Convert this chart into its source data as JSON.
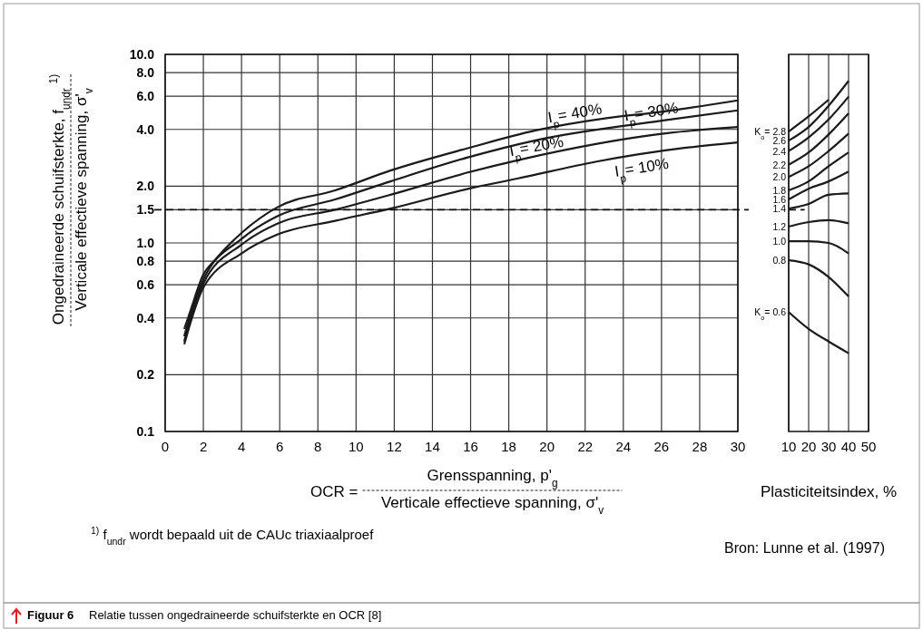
{
  "chart_data": [
    {
      "type": "line",
      "xlabel": "OCR =\nGrensspanning, p'$_{g}$\nVerticale effectieve spanning, σ'$_{v}$",
      "ylabel": "Ongedraineerde schuifsterkte, f$_{undr}$ $^{1)}$\nVerticale effectieve spanning, σ'$_{v}$",
      "xlim": [
        0,
        30
      ],
      "xticks": [
        0,
        2,
        4,
        6,
        8,
        10,
        12,
        14,
        16,
        18,
        20,
        22,
        24,
        26,
        28,
        30
      ],
      "ylim": [
        0.1,
        10
      ],
      "yticks": [
        0.1,
        0.2,
        0.4,
        0.6,
        0.8,
        {
          "value": 1,
          "label": "1.0"
        },
        1.5,
        {
          "value": 2,
          "label": "2.0"
        },
        {
          "value": 4,
          "label": "4.0"
        },
        {
          "value": 6,
          "label": "6.0"
        },
        {
          "value": 8,
          "label": "8.0"
        },
        {
          "value": 10,
          "label": "10.0"
        }
      ],
      "log": "y",
      "grid": true,
      "ref_lines": [
        {
          "axis": "y",
          "value": 1.5,
          "line_style": "dashed"
        }
      ],
      "series": [
        {
          "name": "I$_{p}$= 10%",
          "color": "#1a1a1a",
          "x": [
            1,
            1.3,
            2,
            4,
            5.9,
            8.9,
            11.8,
            15.9,
            18.5,
            22.6,
            27.2,
            30
          ],
          "values": [
            0.29,
            0.37,
            0.58,
            0.88,
            1.11,
            1.31,
            1.52,
            1.94,
            2.2,
            2.7,
            3.19,
            3.41
          ]
        },
        {
          "name": "I$_{p}$= 20%",
          "color": "#1a1a1a",
          "x": [
            1,
            1.3,
            2,
            4,
            5.9,
            8.9,
            11.8,
            15.9,
            18.5,
            26.4,
            30
          ],
          "values": [
            0.3,
            0.39,
            0.61,
            0.98,
            1.27,
            1.5,
            1.8,
            2.37,
            2.75,
            3.83,
            4.12
          ]
        },
        {
          "name": "I$_{p}$= 30%",
          "color": "#1a1a1a",
          "x": [
            1,
            1.3,
            2,
            4,
            5.9,
            8.9,
            11.8,
            15.9,
            19.4,
            26,
            30
          ],
          "values": [
            0.32,
            0.41,
            0.64,
            1.05,
            1.39,
            1.7,
            2.12,
            2.85,
            3.5,
            4.45,
            5.05
          ]
        },
        {
          "name": "I$_{p}$= 40%",
          "color": "#1a1a1a",
          "x": [
            1,
            1.3,
            2,
            2.6,
            4,
            5.9,
            8.9,
            11.8,
            15.9,
            19.4,
            23.2,
            26,
            30
          ],
          "values": [
            0.35,
            0.43,
            0.68,
            0.81,
            1.13,
            1.55,
            1.9,
            2.42,
            3.19,
            3.95,
            4.6,
            4.96,
            5.7
          ]
        }
      ],
      "annotations": [
        "$^{1)}$ f$_{undr}$ wordt bepaald uit de CAUc triaxiaalproef",
        "Bron: Lunne et al. (1997)",
        "Figuur 6",
        "Relatie tussen ongedraineerde schuifsterkte en OCR [8]"
      ]
    },
    {
      "type": "line",
      "xlabel": "Plasticiteitsindex, %",
      "xlim": [
        10,
        50
      ],
      "xticks": [
        10,
        20,
        30,
        40,
        50
      ],
      "ylim": [
        0.1,
        10
      ],
      "log": "y",
      "grid": "x",
      "tick_labels": "x",
      "ref_lines": [
        {
          "axis": "y",
          "value": 1.5,
          "line_style": "dashed"
        }
      ],
      "series": [
        {
          "name": "K$_{o}$= 2.8",
          "color": "#1a1a1a",
          "x": [
            10,
            20,
            30
          ],
          "values": [
            3.9,
            4.69,
            5.75
          ]
        },
        {
          "name": "2.6",
          "color": "#1a1a1a",
          "x": [
            10,
            20,
            30,
            40
          ],
          "values": [
            3.49,
            4.12,
            5.34,
            7.23
          ]
        },
        {
          "name": "2.4",
          "color": "#1a1a1a",
          "x": [
            10,
            20,
            30,
            40
          ],
          "values": [
            3.07,
            3.63,
            4.52,
            5.97
          ]
        },
        {
          "name": "2.2",
          "color": "#1a1a1a",
          "x": [
            10,
            20,
            30,
            40
          ],
          "values": [
            2.6,
            3.02,
            3.76,
            4.87
          ]
        },
        {
          "name": "2.0",
          "color": "#1a1a1a",
          "x": [
            10,
            20,
            30,
            40
          ],
          "values": [
            2.24,
            2.55,
            3.07,
            3.8
          ]
        },
        {
          "name": "1.8",
          "color": "#1a1a1a",
          "x": [
            10,
            20,
            30,
            40
          ],
          "values": [
            1.9,
            2.12,
            2.55,
            3.02
          ]
        },
        {
          "name": "1.6",
          "color": "#1a1a1a",
          "x": [
            10,
            20,
            30,
            40
          ],
          "values": [
            1.7,
            1.94,
            2.12,
            2.39
          ]
        },
        {
          "name": "1.4",
          "color": "#1a1a1a",
          "x": [
            10,
            20,
            30,
            40
          ],
          "values": [
            1.52,
            1.61,
            1.8,
            1.83
          ]
        },
        {
          "name": "1.2",
          "color": "#1a1a1a",
          "x": [
            10,
            20,
            30,
            40
          ],
          "values": [
            1.22,
            1.29,
            1.32,
            1.27
          ]
        },
        {
          "name": "1.0",
          "color": "#1a1a1a",
          "x": [
            10,
            20,
            30,
            40
          ],
          "values": [
            1.02,
            1.02,
            1,
            0.88
          ]
        },
        {
          "name": "0.8",
          "color": "#1a1a1a",
          "x": [
            10,
            20,
            30,
            40
          ],
          "values": [
            0.81,
            0.77,
            0.66,
            0.52
          ]
        },
        {
          "name": "K$_{o}$= 0.6",
          "color": "#1a1a1a",
          "x": [
            10,
            20,
            30,
            40
          ],
          "values": [
            0.43,
            0.35,
            0.3,
            0.26
          ]
        }
      ]
    }
  ]
}
